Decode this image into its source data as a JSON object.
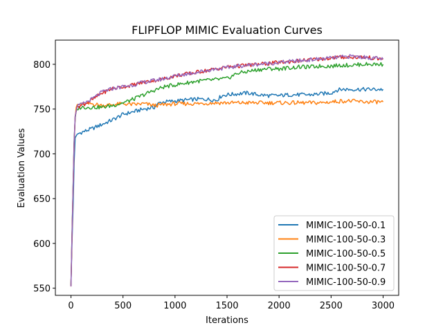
{
  "chart_data": {
    "type": "line",
    "title": "FLIPFLOP MIMIC Evaluation Curves",
    "xlabel": "Iterations",
    "ylabel": "Evaluation Values",
    "xlim": [
      -150,
      3150
    ],
    "ylim": [
      542,
      827
    ],
    "xticks": [
      0,
      500,
      1000,
      1500,
      2000,
      2500,
      3000
    ],
    "yticks": [
      550,
      600,
      650,
      700,
      750,
      800
    ],
    "grid": false,
    "legend_position": "lower-right",
    "series": [
      {
        "name": "MIMIC-100-50-0.1",
        "color": "#1f77b4",
        "points": [
          [
            0,
            553
          ],
          [
            10,
            600
          ],
          [
            20,
            640
          ],
          [
            30,
            690
          ],
          [
            40,
            718
          ],
          [
            60,
            722
          ],
          [
            100,
            724
          ],
          [
            200,
            728
          ],
          [
            300,
            733
          ],
          [
            400,
            738
          ],
          [
            500,
            744
          ],
          [
            600,
            747
          ],
          [
            700,
            750
          ],
          [
            800,
            752
          ],
          [
            850,
            757
          ],
          [
            900,
            758
          ],
          [
            1000,
            759
          ],
          [
            1100,
            760
          ],
          [
            1200,
            761
          ],
          [
            1300,
            761
          ],
          [
            1400,
            760
          ],
          [
            1450,
            765
          ],
          [
            1500,
            766
          ],
          [
            1600,
            767
          ],
          [
            1700,
            768
          ],
          [
            1800,
            766
          ],
          [
            1900,
            765
          ],
          [
            2000,
            765
          ],
          [
            2100,
            766
          ],
          [
            2200,
            766
          ],
          [
            2300,
            766
          ],
          [
            2400,
            767
          ],
          [
            2500,
            768
          ],
          [
            2550,
            771
          ],
          [
            2600,
            772
          ],
          [
            2700,
            772
          ],
          [
            2800,
            772
          ],
          [
            2900,
            772
          ],
          [
            3000,
            772
          ]
        ]
      },
      {
        "name": "MIMIC-100-50-0.3",
        "color": "#ff7f0e",
        "points": [
          [
            0,
            553
          ],
          [
            10,
            605
          ],
          [
            20,
            660
          ],
          [
            30,
            710
          ],
          [
            40,
            740
          ],
          [
            50,
            752
          ],
          [
            60,
            755
          ],
          [
            100,
            755
          ],
          [
            200,
            756
          ],
          [
            300,
            754
          ],
          [
            400,
            755
          ],
          [
            500,
            756
          ],
          [
            600,
            755
          ],
          [
            700,
            756
          ],
          [
            800,
            754
          ],
          [
            900,
            755
          ],
          [
            1000,
            756
          ],
          [
            1200,
            756
          ],
          [
            1400,
            757
          ],
          [
            1600,
            757
          ],
          [
            1800,
            757
          ],
          [
            2000,
            757
          ],
          [
            2200,
            757
          ],
          [
            2400,
            757
          ],
          [
            2500,
            758
          ],
          [
            2600,
            759
          ],
          [
            2700,
            759
          ],
          [
            2800,
            758
          ],
          [
            2900,
            758
          ],
          [
            3000,
            758
          ]
        ]
      },
      {
        "name": "MIMIC-100-50-0.5",
        "color": "#2ca02c",
        "points": [
          [
            0,
            553
          ],
          [
            10,
            610
          ],
          [
            20,
            665
          ],
          [
            30,
            715
          ],
          [
            40,
            740
          ],
          [
            50,
            748
          ],
          [
            70,
            751
          ],
          [
            100,
            752
          ],
          [
            200,
            752
          ],
          [
            300,
            752
          ],
          [
            400,
            754
          ],
          [
            500,
            757
          ],
          [
            600,
            761
          ],
          [
            700,
            766
          ],
          [
            800,
            771
          ],
          [
            900,
            775
          ],
          [
            1000,
            777
          ],
          [
            1100,
            779
          ],
          [
            1200,
            781
          ],
          [
            1300,
            782
          ],
          [
            1400,
            783
          ],
          [
            1500,
            784
          ],
          [
            1600,
            790
          ],
          [
            1700,
            792
          ],
          [
            1800,
            794
          ],
          [
            1900,
            795
          ],
          [
            2000,
            795
          ],
          [
            2100,
            796
          ],
          [
            2200,
            797
          ],
          [
            2300,
            797
          ],
          [
            2400,
            798
          ],
          [
            2500,
            798
          ],
          [
            2600,
            799
          ],
          [
            2700,
            799
          ],
          [
            2800,
            800
          ],
          [
            2900,
            800
          ],
          [
            3000,
            800
          ]
        ]
      },
      {
        "name": "MIMIC-100-50-0.7",
        "color": "#d62728",
        "points": [
          [
            0,
            552
          ],
          [
            10,
            607
          ],
          [
            20,
            662
          ],
          [
            30,
            712
          ],
          [
            40,
            742
          ],
          [
            60,
            753
          ],
          [
            100,
            754
          ],
          [
            200,
            760
          ],
          [
            300,
            768
          ],
          [
            400,
            773
          ],
          [
            500,
            775
          ],
          [
            600,
            777
          ],
          [
            700,
            780
          ],
          [
            800,
            782
          ],
          [
            900,
            784
          ],
          [
            1000,
            787
          ],
          [
            1100,
            789
          ],
          [
            1200,
            791
          ],
          [
            1300,
            793
          ],
          [
            1400,
            795
          ],
          [
            1500,
            797
          ],
          [
            1600,
            798
          ],
          [
            1700,
            799
          ],
          [
            1800,
            800
          ],
          [
            1900,
            801
          ],
          [
            2000,
            802
          ],
          [
            2100,
            803
          ],
          [
            2200,
            804
          ],
          [
            2300,
            805
          ],
          [
            2400,
            806
          ],
          [
            2500,
            807
          ],
          [
            2600,
            808
          ],
          [
            2700,
            808
          ],
          [
            2800,
            808
          ],
          [
            2900,
            807
          ],
          [
            3000,
            806
          ]
        ]
      },
      {
        "name": "MIMIC-100-50-0.9",
        "color": "#9467bd",
        "points": [
          [
            0,
            552
          ],
          [
            10,
            607
          ],
          [
            20,
            662
          ],
          [
            30,
            712
          ],
          [
            40,
            742
          ],
          [
            60,
            753
          ],
          [
            100,
            755
          ],
          [
            200,
            761
          ],
          [
            300,
            769
          ],
          [
            400,
            773
          ],
          [
            500,
            775
          ],
          [
            600,
            777
          ],
          [
            700,
            780
          ],
          [
            800,
            782
          ],
          [
            900,
            784
          ],
          [
            1000,
            787
          ],
          [
            1100,
            789
          ],
          [
            1200,
            791
          ],
          [
            1300,
            793
          ],
          [
            1400,
            795
          ],
          [
            1500,
            796
          ],
          [
            1600,
            798
          ],
          [
            1700,
            799
          ],
          [
            1800,
            800
          ],
          [
            1900,
            801
          ],
          [
            2000,
            802
          ],
          [
            2100,
            803
          ],
          [
            2200,
            804
          ],
          [
            2300,
            805
          ],
          [
            2400,
            806
          ],
          [
            2500,
            807
          ],
          [
            2600,
            808
          ],
          [
            2700,
            809
          ],
          [
            2800,
            808
          ],
          [
            2900,
            807
          ],
          [
            3000,
            806
          ]
        ]
      }
    ]
  }
}
